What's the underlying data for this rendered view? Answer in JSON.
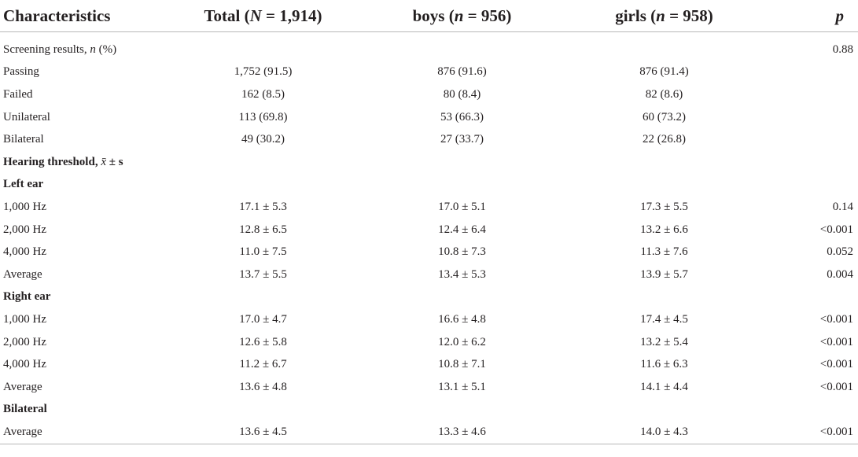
{
  "table": {
    "header": {
      "characteristics": "Characteristics",
      "total": "Total (N = 1,914)",
      "boys": "boys (n = 956)",
      "girls": "girls (n = 958)",
      "p": "p"
    },
    "rows": [
      {
        "label": "Screening results, n (%)",
        "total": "",
        "boys": "",
        "girls": "",
        "p": "0.88",
        "type": "normal"
      },
      {
        "label": "Passing",
        "total": "1,752 (91.5)",
        "boys": "876 (91.6)",
        "girls": "876 (91.4)",
        "p": "",
        "type": "normal"
      },
      {
        "label": "Failed",
        "total": "162 (8.5)",
        "boys": "80 (8.4)",
        "girls": "82 (8.6)",
        "p": "",
        "type": "normal"
      },
      {
        "label": "Unilateral",
        "total": "113 (69.8)",
        "boys": "53 (66.3)",
        "girls": "60 (73.2)",
        "p": "",
        "type": "normal"
      },
      {
        "label": "Bilateral",
        "total": "49 (30.2)",
        "boys": "27 (33.7)",
        "girls": "22 (26.8)",
        "p": "",
        "type": "normal"
      },
      {
        "label": "Hearing threshold, x̄ ± s",
        "total": "",
        "boys": "",
        "girls": "",
        "p": "",
        "type": "section"
      },
      {
        "label": "Left ear",
        "total": "",
        "boys": "",
        "girls": "",
        "p": "",
        "type": "section"
      },
      {
        "label": "1,000 Hz",
        "total": "17.1 ± 5.3",
        "boys": "17.0 ± 5.1",
        "girls": "17.3 ± 5.5",
        "p": "0.14",
        "type": "normal"
      },
      {
        "label": "2,000 Hz",
        "total": "12.8 ± 6.5",
        "boys": "12.4 ± 6.4",
        "girls": "13.2 ± 6.6",
        "p": "<0.001",
        "type": "normal"
      },
      {
        "label": "4,000 Hz",
        "total": "11.0 ± 7.5",
        "boys": "10.8 ± 7.3",
        "girls": "11.3 ± 7.6",
        "p": "0.052",
        "type": "normal"
      },
      {
        "label": "Average",
        "total": "13.7 ± 5.5",
        "boys": "13.4 ± 5.3",
        "girls": "13.9 ± 5.7",
        "p": "0.004",
        "type": "normal"
      },
      {
        "label": "Right ear",
        "total": "",
        "boys": "",
        "girls": "",
        "p": "",
        "type": "section"
      },
      {
        "label": "1,000 Hz",
        "total": "17.0 ± 4.7",
        "boys": "16.6 ± 4.8",
        "girls": "17.4 ± 4.5",
        "p": "<0.001",
        "type": "normal"
      },
      {
        "label": "2,000 Hz",
        "total": "12.6 ± 5.8",
        "boys": "12.0 ± 6.2",
        "girls": "13.2 ± 5.4",
        "p": "<0.001",
        "type": "normal"
      },
      {
        "label": "4,000 Hz",
        "total": "11.2 ± 6.7",
        "boys": "10.8 ± 7.1",
        "girls": "11.6 ± 6.3",
        "p": "<0.001",
        "type": "normal"
      },
      {
        "label": "Average",
        "total": "13.6 ± 4.8",
        "boys": "13.1 ± 5.1",
        "girls": "14.1 ± 4.4",
        "p": "<0.001",
        "type": "normal"
      },
      {
        "label": "Bilateral",
        "total": "",
        "boys": "",
        "girls": "",
        "p": "",
        "type": "section"
      },
      {
        "label": "Average",
        "total": "13.6 ± 4.5",
        "boys": "13.3 ± 4.6",
        "girls": "14.0 ± 4.3",
        "p": "<0.001",
        "type": "normal"
      }
    ]
  }
}
